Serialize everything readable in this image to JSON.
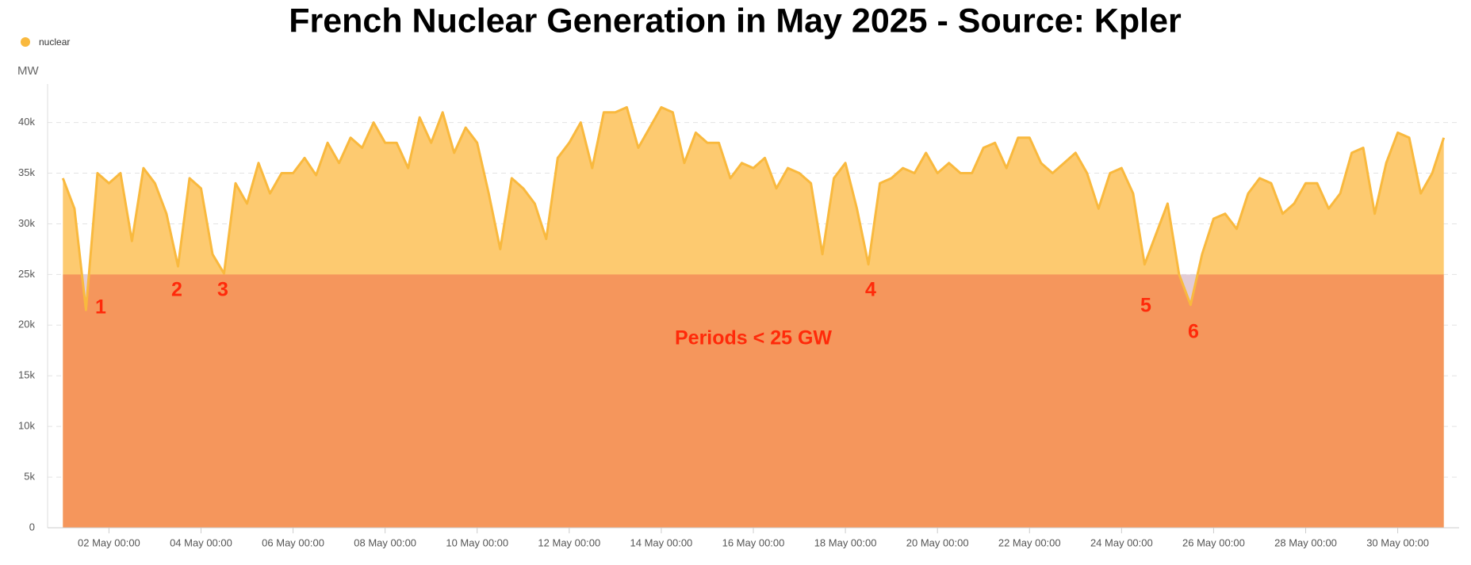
{
  "chart_data": {
    "type": "area",
    "title": "French Nuclear Generation in May 2025 - Source: Kpler",
    "y_label": "MW",
    "x": [
      "01 May 00:00",
      "01 May 06:00",
      "01 May 12:00",
      "01 May 18:00",
      "02 May 00:00",
      "02 May 06:00",
      "02 May 12:00",
      "02 May 18:00",
      "03 May 00:00",
      "03 May 06:00",
      "03 May 12:00",
      "03 May 18:00",
      "04 May 00:00",
      "04 May 06:00",
      "04 May 12:00",
      "04 May 18:00",
      "05 May 00:00",
      "05 May 06:00",
      "05 May 12:00",
      "05 May 18:00",
      "06 May 00:00",
      "06 May 06:00",
      "06 May 12:00",
      "06 May 18:00",
      "07 May 00:00",
      "07 May 06:00",
      "07 May 12:00",
      "07 May 18:00",
      "08 May 00:00",
      "08 May 06:00",
      "08 May 12:00",
      "08 May 18:00",
      "09 May 00:00",
      "09 May 06:00",
      "09 May 12:00",
      "09 May 18:00",
      "10 May 00:00",
      "10 May 06:00",
      "10 May 12:00",
      "10 May 18:00",
      "11 May 00:00",
      "11 May 06:00",
      "11 May 12:00",
      "11 May 18:00",
      "12 May 00:00",
      "12 May 06:00",
      "12 May 12:00",
      "12 May 18:00",
      "13 May 00:00",
      "13 May 06:00",
      "13 May 12:00",
      "13 May 18:00",
      "14 May 00:00",
      "14 May 06:00",
      "14 May 12:00",
      "14 May 18:00",
      "15 May 00:00",
      "15 May 06:00",
      "15 May 12:00",
      "15 May 18:00",
      "16 May 00:00",
      "16 May 06:00",
      "16 May 12:00",
      "16 May 18:00",
      "17 May 00:00",
      "17 May 06:00",
      "17 May 12:00",
      "17 May 18:00",
      "18 May 00:00",
      "18 May 06:00",
      "18 May 12:00",
      "18 May 18:00",
      "19 May 00:00",
      "19 May 06:00",
      "19 May 12:00",
      "19 May 18:00",
      "20 May 00:00",
      "20 May 06:00",
      "20 May 12:00",
      "20 May 18:00",
      "21 May 00:00",
      "21 May 06:00",
      "21 May 12:00",
      "21 May 18:00",
      "22 May 00:00",
      "22 May 06:00",
      "22 May 12:00",
      "22 May 18:00",
      "23 May 00:00",
      "23 May 06:00",
      "23 May 12:00",
      "23 May 18:00",
      "24 May 00:00",
      "24 May 06:00",
      "24 May 12:00",
      "24 May 18:00",
      "25 May 00:00",
      "25 May 06:00",
      "25 May 12:00",
      "25 May 18:00",
      "26 May 00:00",
      "26 May 06:00",
      "26 May 12:00",
      "26 May 18:00",
      "27 May 00:00",
      "27 May 06:00",
      "27 May 12:00",
      "27 May 18:00",
      "28 May 00:00",
      "28 May 06:00",
      "28 May 12:00",
      "28 May 18:00",
      "29 May 00:00",
      "29 May 06:00",
      "29 May 12:00",
      "29 May 18:00",
      "30 May 00:00",
      "30 May 06:00",
      "30 May 12:00",
      "30 May 18:00",
      "31 May 00:00"
    ],
    "series": [
      {
        "name": "nuclear",
        "color": "#f9b93e",
        "fill_color": "#fdca70",
        "values": [
          34500,
          31500,
          21500,
          35000,
          34000,
          35000,
          28300,
          35500,
          34000,
          31000,
          25800,
          34500,
          33500,
          27000,
          25100,
          34000,
          32000,
          36000,
          33000,
          35000,
          35000,
          36500,
          34800,
          38000,
          36000,
          38500,
          37500,
          40000,
          38000,
          38000,
          35500,
          40500,
          38000,
          41000,
          37000,
          39500,
          38000,
          33000,
          27500,
          34500,
          33500,
          32000,
          28500,
          36500,
          38000,
          40000,
          35500,
          41000,
          41000,
          41500,
          37500,
          39500,
          41500,
          41000,
          36000,
          39000,
          38000,
          38000,
          34500,
          36000,
          35500,
          36500,
          33500,
          35500,
          35000,
          34000,
          27000,
          34500,
          36000,
          31500,
          26000,
          34000,
          34500,
          35500,
          35000,
          37000,
          35000,
          36000,
          35000,
          35000,
          37500,
          38000,
          35500,
          38500,
          38500,
          36000,
          35000,
          36000,
          37000,
          35000,
          31500,
          35000,
          35500,
          33000,
          26000,
          29000,
          32000,
          25000,
          22000,
          27000,
          30500,
          31000,
          29500,
          33000,
          34500,
          34000,
          31000,
          32000,
          34000,
          34000,
          31500,
          33000,
          37000,
          37500,
          31000,
          36000,
          39000,
          38500,
          33000,
          35000,
          38500
        ]
      }
    ],
    "threshold": 25000,
    "threshold_color": "#f5965c",
    "annotations": [
      "1",
      "2",
      "3",
      "4",
      "5",
      "6",
      "Periods < 25 GW"
    ],
    "xlim": [
      "30 Apr 16:00",
      "31 May 08:00"
    ],
    "xticks": [
      "02 May 00:00",
      "04 May 00:00",
      "06 May 00:00",
      "08 May 00:00",
      "10 May 00:00",
      "12 May 00:00",
      "14 May 00:00",
      "16 May 00:00",
      "18 May 00:00",
      "20 May 00:00",
      "22 May 00:00",
      "24 May 00:00",
      "26 May 00:00",
      "28 May 00:00",
      "30 May 00:00"
    ],
    "ylim": [
      0,
      43800
    ],
    "yticks": [
      0,
      {
        "value": 5000,
        "label": "5k"
      },
      {
        "value": 10000,
        "label": "10k"
      },
      {
        "value": 15000,
        "label": "15k"
      },
      {
        "value": 20000,
        "label": "20k"
      },
      {
        "value": 25000,
        "label": "25k"
      },
      {
        "value": 30000,
        "label": "30k"
      },
      {
        "value": 35000,
        "label": "35k"
      },
      {
        "value": 40000,
        "label": "40k"
      }
    ],
    "grid": true,
    "legend": "top-left"
  }
}
